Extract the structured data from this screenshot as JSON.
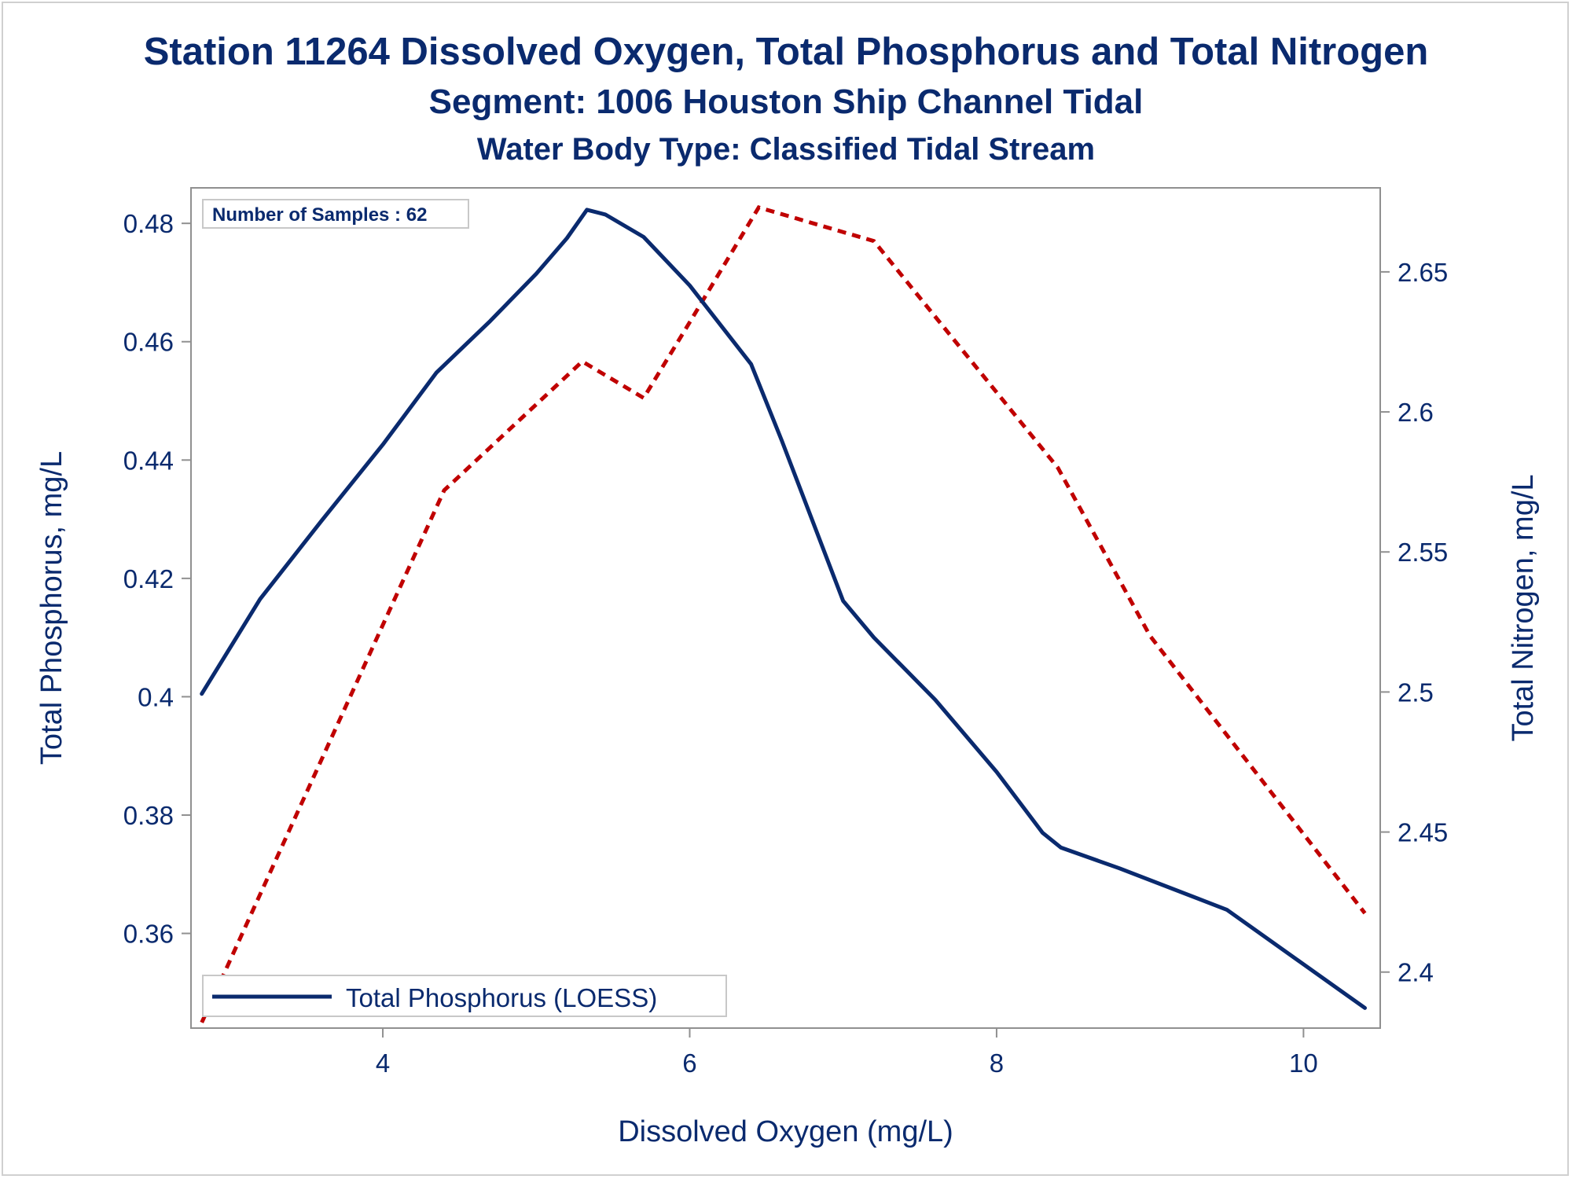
{
  "chart_data": {
    "type": "line",
    "title": "Station 11264  Dissolved Oxygen, Total Phosphorus and Total Nitrogen",
    "subtitle": "Segment: 1006  Houston Ship Channel Tidal",
    "subtitle2": "Water Body Type: Classified Tidal Stream",
    "xlabel": "Dissolved Oxygen (mg/L)",
    "ylabel": "Total Phosphorus, mg/L",
    "y2label": "Total Nitrogen, mg/L",
    "xlim": [
      2.75,
      10.5
    ],
    "ylim": [
      0.344,
      0.486
    ],
    "y2lim": [
      2.38,
      2.68
    ],
    "xticks": [
      "4",
      "6",
      "8",
      "10"
    ],
    "yticks": [
      "0.36",
      "0.38",
      "0.4",
      "0.42",
      "0.44",
      "0.46",
      "0.48"
    ],
    "y2ticks": [
      "2.4",
      "2.45",
      "2.5",
      "2.55",
      "2.6",
      "2.65"
    ],
    "annotation": "Number of Samples : 62",
    "legend": {
      "position": "bottom-left",
      "entries": [
        "Total Phosphorus (LOESS)"
      ]
    },
    "colors": {
      "phosphorus": "#0a2a6e",
      "nitrogen": "#c00000",
      "text": "#0a2a6e",
      "axis": "#909090"
    },
    "series": [
      {
        "name": "Total Phosphorus (LOESS)",
        "axis": "left",
        "style": "solid",
        "x": [
          2.82,
          3.2,
          3.6,
          4.0,
          4.35,
          4.7,
          5.0,
          5.2,
          5.33,
          5.45,
          5.7,
          6.0,
          6.4,
          6.6,
          7.0,
          7.2,
          7.6,
          8.0,
          8.3,
          8.42,
          8.8,
          9.5,
          10.4
        ],
        "values": [
          0.4005,
          0.4165,
          0.4297,
          0.4426,
          0.4548,
          0.4635,
          0.4715,
          0.4775,
          0.4823,
          0.4815,
          0.4777,
          0.4695,
          0.4562,
          0.4433,
          0.4162,
          0.41,
          0.3995,
          0.3873,
          0.377,
          0.3745,
          0.371,
          0.364,
          0.3474
        ]
      },
      {
        "name": "Total Nitrogen",
        "axis": "right",
        "style": "dashed",
        "x": [
          2.82,
          4.4,
          5.3,
          5.7,
          6.0,
          6.45,
          7.2,
          8.4,
          9.0,
          10.4
        ],
        "values": [
          2.382,
          2.572,
          2.618,
          2.605,
          2.632,
          2.673,
          2.661,
          2.58,
          2.52,
          2.421
        ]
      }
    ]
  }
}
